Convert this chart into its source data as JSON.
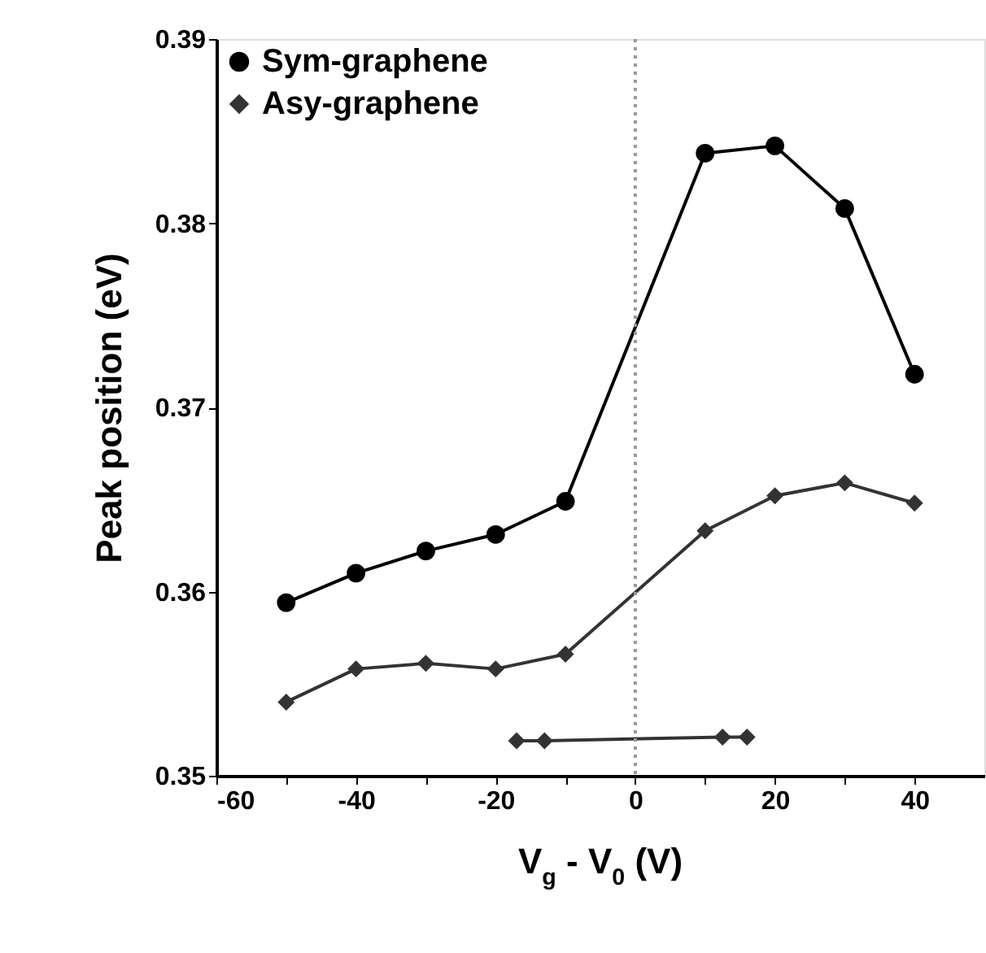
{
  "chart_data": {
    "type": "line",
    "xlabel": "V$_{g}$ - V$_{0}$ (V)",
    "ylabel": "Peak position (eV)",
    "x": [
      -50,
      -40,
      -30,
      -20,
      -10,
      10,
      20,
      30,
      40
    ],
    "series": [
      {
        "name": "Sym-graphene",
        "color": "#000000",
        "marker": "circle",
        "values": [
          0.3594,
          0.361,
          0.3622,
          0.3631,
          0.3649,
          0.3838,
          0.3842,
          0.3808,
          0.3718
        ]
      },
      {
        "name": "Asy-graphene",
        "color": "#333333",
        "marker": "diamond",
        "values": [
          0.354,
          0.3558,
          0.3561,
          0.3558,
          0.3566,
          0.3633,
          0.3652,
          0.3659,
          0.3648
        ]
      },
      {
        "type": "line",
        "color": "#333333",
        "marker": "diamond",
        "x": [
          -17,
          -13,
          12.5,
          16
        ],
        "values": [
          0.3519,
          0.3519,
          0.3521,
          0.3521
        ]
      }
    ],
    "xlim": [
      -60,
      50
    ],
    "ylim": [
      0.35,
      0.39
    ],
    "xticks": [
      -60,
      {
        "value": -50,
        "label": null
      },
      -40,
      {
        "value": -30,
        "label": null
      },
      -20,
      {
        "value": -10,
        "label": null
      },
      0,
      {
        "value": 10,
        "label": null
      },
      20,
      {
        "value": 30,
        "label": null
      },
      40
    ],
    "yticks": [
      0.35,
      0.36,
      0.37,
      0.38,
      0.39
    ],
    "ref_lines": [
      {
        "axis": "x",
        "value": 0,
        "color": "#999999",
        "line_style": "dotted"
      }
    ],
    "legend": "top left",
    "grid": false
  }
}
